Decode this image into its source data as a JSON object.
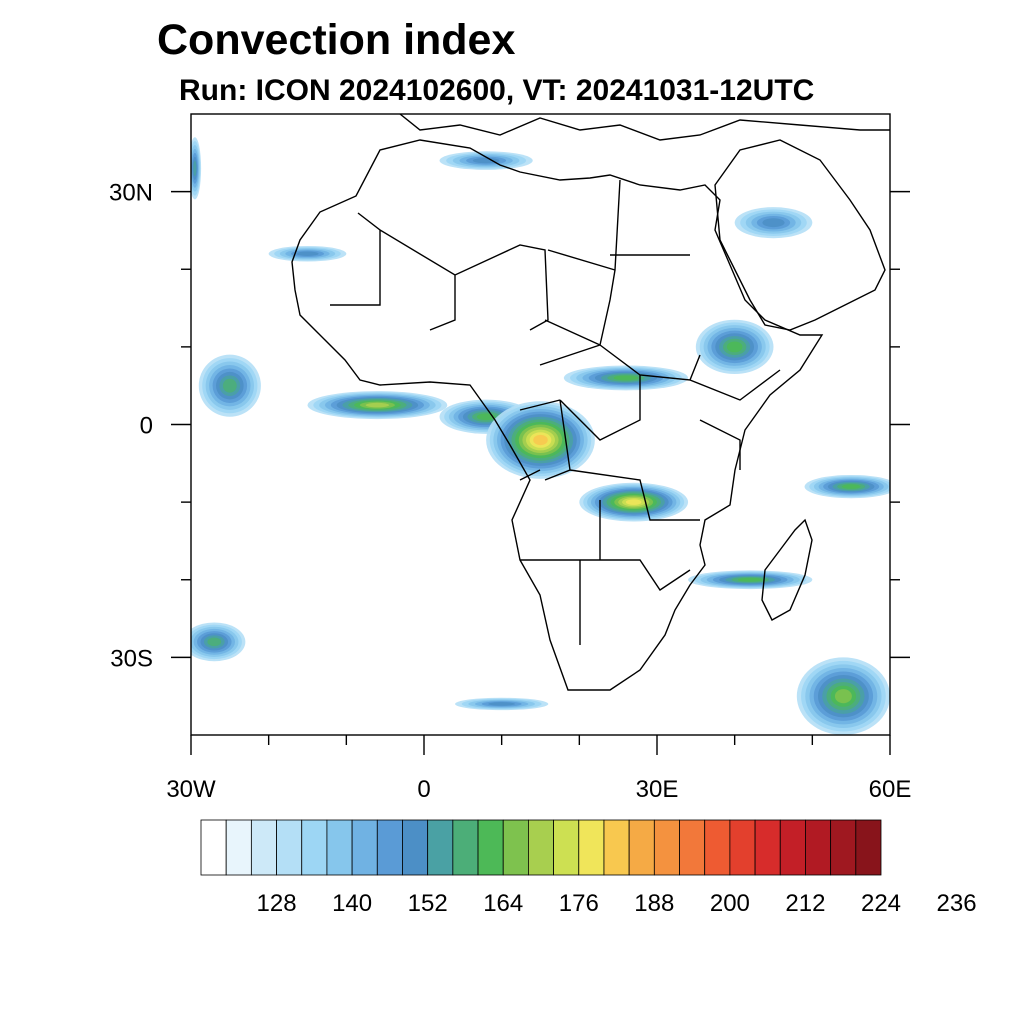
{
  "title": "Convection index",
  "subtitle": "Run: ICON 2024102600,  VT: 20241031-12UTC",
  "map": {
    "extent": {
      "lon_min": -30,
      "lon_max": 60,
      "lat_min": -40,
      "lat_max": 40
    },
    "y_tick_labels": [
      {
        "text": "30N",
        "lat": 30
      },
      {
        "text": "0",
        "lat": 0
      },
      {
        "text": "30S",
        "lat": -30
      }
    ],
    "x_tick_labels": [
      {
        "text": "30W",
        "lon": -30
      },
      {
        "text": "0",
        "lon": 0
      },
      {
        "text": "30E",
        "lon": 30
      },
      {
        "text": "60E",
        "lon": 60
      }
    ],
    "minor_lon_ticks": [
      -30,
      -20,
      -10,
      0,
      10,
      20,
      30,
      40,
      50,
      60
    ],
    "minor_lat_ticks": [
      30,
      20,
      10,
      0,
      -10,
      -20,
      -30
    ]
  },
  "colorbar": {
    "colors": [
      "#ffffff",
      "#e8f5fc",
      "#cde9f8",
      "#b4dff6",
      "#9dd6f4",
      "#86c6ec",
      "#70b2e3",
      "#5a9bd6",
      "#4c8fc6",
      "#4aa1a4",
      "#4cae78",
      "#4db957",
      "#7ec24e",
      "#a8cf4f",
      "#cde052",
      "#f0e55a",
      "#f8c84f",
      "#f5aa45",
      "#f4923f",
      "#f2783a",
      "#ee5b32",
      "#e3402d",
      "#d72c2b",
      "#c31f27",
      "#b11a23",
      "#9f1820",
      "#88141b"
    ],
    "tick_labels": [
      "128",
      "140",
      "152",
      "164",
      "176",
      "188",
      "200",
      "212",
      "224",
      "236"
    ]
  },
  "convection_blobs": [
    {
      "name": "nw-edge-blob",
      "lon": -29.5,
      "lat": 33,
      "rx": 0.8,
      "ry": 4,
      "level": 10
    },
    {
      "name": "atlantic-west-blob",
      "lon": -25,
      "lat": 5,
      "rx": 4,
      "ry": 4,
      "level": 11
    },
    {
      "name": "atlantic-band",
      "lon": -6,
      "lat": 2.5,
      "rx": 9,
      "ry": 1.8,
      "level": 14
    },
    {
      "name": "gulf-guinea-band",
      "lon": 8,
      "lat": 1,
      "rx": 6,
      "ry": 2.2,
      "level": 12
    },
    {
      "name": "congo-core",
      "lon": 15,
      "lat": -2,
      "rx": 7,
      "ry": 5,
      "level": 17
    },
    {
      "name": "zambia-band",
      "lon": 27,
      "lat": -10,
      "rx": 7,
      "ry": 2.5,
      "level": 16
    },
    {
      "name": "sahel-east-band",
      "lon": 26,
      "lat": 6,
      "rx": 8,
      "ry": 1.6,
      "level": 12
    },
    {
      "name": "ethiopia-blob",
      "lon": 40,
      "lat": 10,
      "rx": 5,
      "ry": 3.5,
      "level": 12
    },
    {
      "name": "mozambique-channel",
      "lon": 42,
      "lat": -20,
      "rx": 8,
      "ry": 1.2,
      "level": 12
    },
    {
      "name": "indian-ocean-east",
      "lon": 55,
      "lat": -8,
      "rx": 6,
      "ry": 1.5,
      "level": 12
    },
    {
      "name": "southern-indian-blob",
      "lon": 54,
      "lat": -35,
      "rx": 6,
      "ry": 5,
      "level": 13
    },
    {
      "name": "south-atlantic-blob",
      "lon": -27,
      "lat": -28,
      "rx": 4,
      "ry": 2.5,
      "level": 11
    },
    {
      "name": "red-sea-band",
      "lon": 45,
      "lat": 26,
      "rx": 5,
      "ry": 2,
      "level": 9
    },
    {
      "name": "north-africa-band",
      "lon": 8,
      "lat": 34,
      "rx": 6,
      "ry": 1.2,
      "level": 9
    },
    {
      "name": "west-sahara-band",
      "lon": -15,
      "lat": 22,
      "rx": 5,
      "ry": 1,
      "level": 9
    },
    {
      "name": "south-atlantic-streak",
      "lon": 10,
      "lat": -36,
      "rx": 6,
      "ry": 0.8,
      "level": 9
    }
  ]
}
